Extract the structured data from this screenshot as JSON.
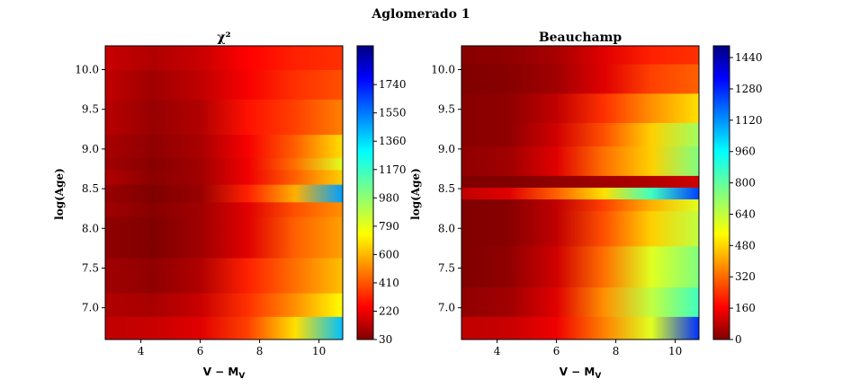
{
  "chart_data": {
    "type": "heatmap",
    "title": "Aglomerado 1",
    "colormap": "jet",
    "panels": [
      {
        "title": "χ²",
        "xlabel": "V - M_V",
        "ylabel": "log(Age)",
        "xlim": [
          2.8,
          10.8
        ],
        "ylim": [
          6.6,
          10.3
        ],
        "xticks": [
          "4",
          "6",
          "8",
          "10"
        ],
        "yticks": [
          "7.0",
          "7.5",
          "8.0",
          "8.5",
          "9.0",
          "9.5",
          "10.0"
        ],
        "clim": [
          30,
          2000
        ],
        "colorbar_ticks": [
          "30",
          "220",
          "410",
          "600",
          "790",
          "980",
          "1170",
          "1360",
          "1550",
          "1740"
        ]
      },
      {
        "title": "Beauchamp",
        "xlabel": "V - M_V",
        "ylabel": "log(Age)",
        "xlim": [
          2.8,
          10.8
        ],
        "ylim": [
          6.6,
          10.3
        ],
        "xticks": [
          "4",
          "6",
          "8",
          "10"
        ],
        "yticks": [
          "7.0",
          "7.5",
          "8.0",
          "8.5",
          "9.0",
          "9.5",
          "10.0"
        ],
        "clim": [
          0,
          1500
        ],
        "colorbar_ticks": [
          "0",
          "160",
          "320",
          "480",
          "640",
          "800",
          "960",
          "1120",
          "1280",
          "1440"
        ]
      }
    ]
  }
}
